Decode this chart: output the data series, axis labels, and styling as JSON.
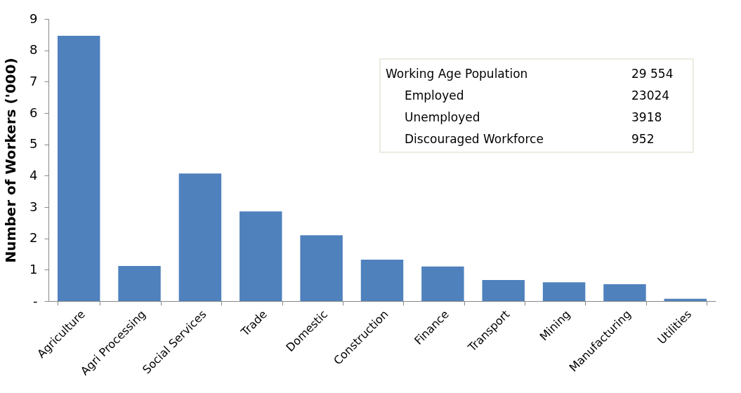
{
  "chart_data": {
    "type": "bar",
    "ylabel": "Number of Workers ('000)",
    "categories": [
      "Agriculture",
      "Agri Processing",
      "Social Services",
      "Trade",
      "Domestic",
      "Construction",
      "Finance",
      "Transport",
      "Mining",
      "Manufacturing",
      "Utilities"
    ],
    "values": [
      8.46,
      1.12,
      4.07,
      2.86,
      2.1,
      1.32,
      1.1,
      0.67,
      0.6,
      0.54,
      0.07
    ],
    "color": "#4f81bd",
    "ylim": [
      0,
      9
    ],
    "yticks": [
      {
        "value": 0,
        "label": "-"
      },
      1,
      2,
      3,
      4,
      5,
      6,
      7,
      8,
      9
    ],
    "grid": false,
    "annotations": [
      "Working Age Population",
      "29 554",
      "Employed",
      "23024",
      "Unemployed",
      "3918",
      "Discouraged Workforce",
      "952"
    ]
  }
}
